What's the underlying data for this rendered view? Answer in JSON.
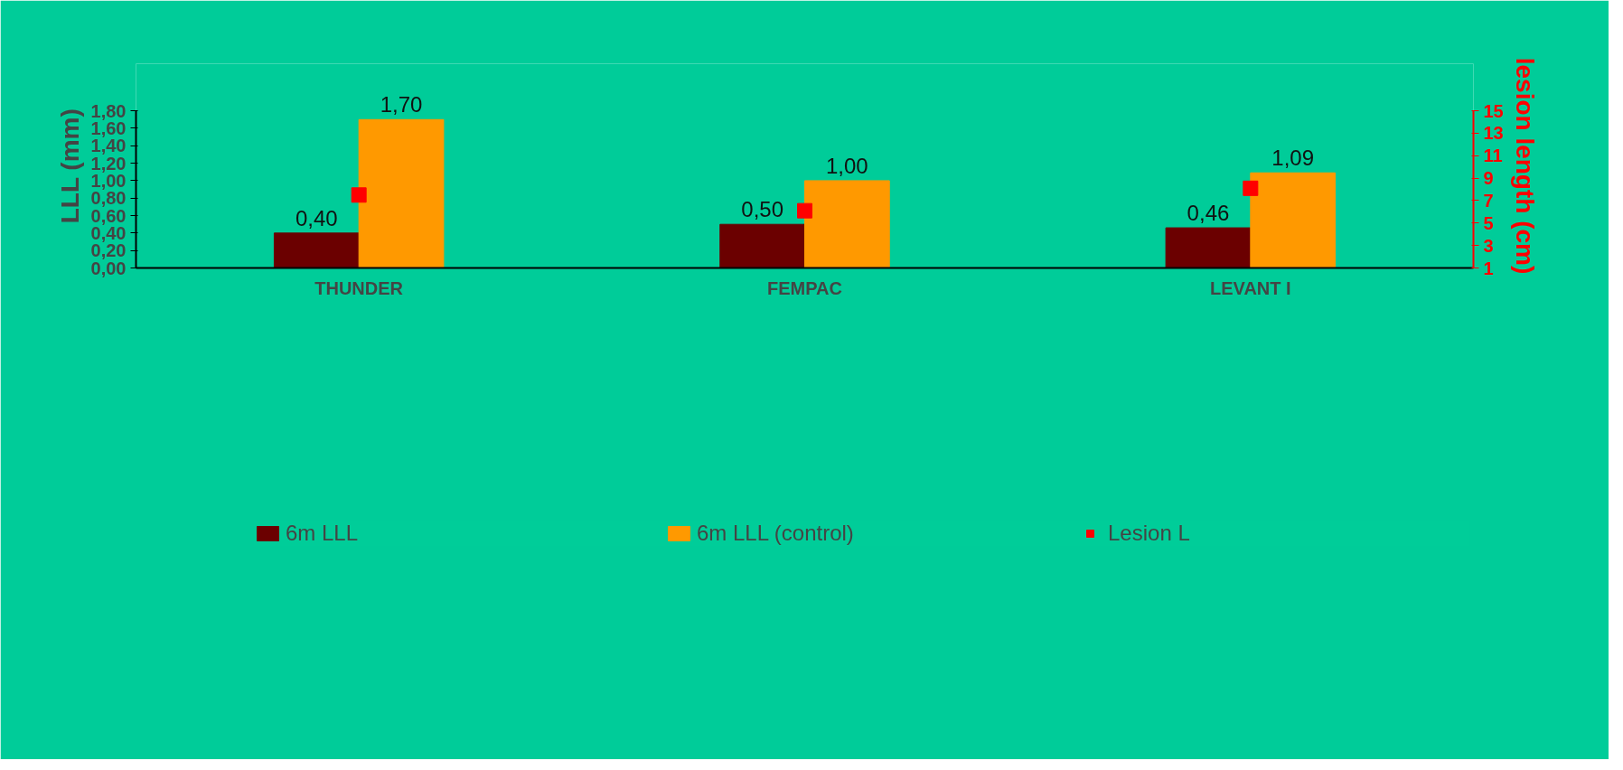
{
  "chart_data": {
    "type": "bar",
    "categories": [
      "THUNDER",
      "FEMPAC",
      "LEVANT I"
    ],
    "ylabel": "LLL (mm)",
    "y2label": "lesion length (cm)",
    "series": [
      {
        "name": "6m LLL",
        "color": "#6b0000",
        "values": [
          0.4,
          0.5,
          0.46
        ],
        "value_labels": [
          "0,40",
          "0,50",
          "0,46"
        ]
      },
      {
        "name": "6m LLL (control)",
        "color": "#ff9900",
        "values": [
          1.7,
          1.0,
          1.09
        ],
        "value_labels": [
          "1,70",
          "1,00",
          "1,09"
        ]
      },
      {
        "name": "Lesion L",
        "type": "scatter",
        "axis": "y2",
        "color": "#ff0000",
        "values": [
          7.5,
          6.1,
          8.1
        ]
      }
    ],
    "ylim": [
      0,
      1.8
    ],
    "yticks": [
      {
        "value": 0,
        "label": "0,00"
      },
      {
        "value": 0.2,
        "label": "0,20"
      },
      {
        "value": 0.4,
        "label": "0,40"
      },
      {
        "value": 0.6,
        "label": "0,60"
      },
      {
        "value": 0.8,
        "label": "0,80"
      },
      {
        "value": 1.0,
        "label": "1,00"
      },
      {
        "value": 1.2,
        "label": "1,20"
      },
      {
        "value": 1.4,
        "label": "1,40"
      },
      {
        "value": 1.6,
        "label": "1,60"
      },
      {
        "value": 1.8,
        "label": "1,80"
      }
    ],
    "y2lim": [
      1,
      15
    ],
    "y2ticks": [
      1,
      3,
      5,
      7,
      9,
      11,
      13,
      15
    ],
    "grid": false,
    "legend": "bottom"
  }
}
